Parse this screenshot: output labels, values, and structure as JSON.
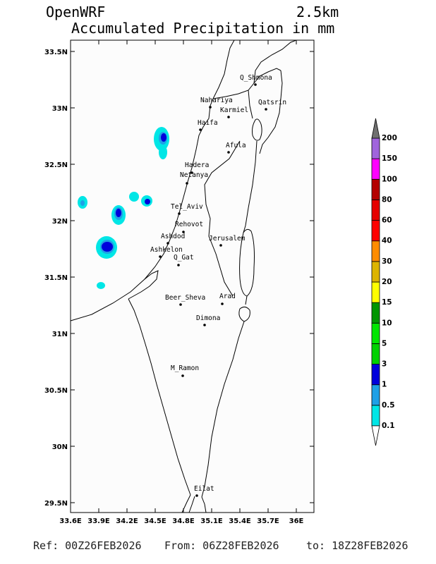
{
  "header": {
    "product": "OpenWRF",
    "resolution": "2.5km",
    "title": "Accumulated Precipitation in mm"
  },
  "map": {
    "lon_ticks": [
      {
        "value": 33.6,
        "label": "33.6E"
      },
      {
        "value": 33.9,
        "label": "33.9E"
      },
      {
        "value": 34.2,
        "label": "34.2E"
      },
      {
        "value": 34.5,
        "label": "34.5E"
      },
      {
        "value": 34.8,
        "label": "34.8E"
      },
      {
        "value": 35.1,
        "label": "35.1E"
      },
      {
        "value": 35.4,
        "label": "35.4E"
      },
      {
        "value": 35.7,
        "label": "35.7E"
      },
      {
        "value": 36,
        "label": "36E"
      }
    ],
    "lat_ticks": [
      {
        "value": 33.5,
        "label": "33.5N"
      },
      {
        "value": 33,
        "label": "33N"
      },
      {
        "value": 32.5,
        "label": "32.5N"
      },
      {
        "value": 32,
        "label": "32N"
      },
      {
        "value": 31.5,
        "label": "31.5N"
      },
      {
        "value": 31,
        "label": "31N"
      },
      {
        "value": 30.5,
        "label": "30.5N"
      },
      {
        "value": 30,
        "label": "30N"
      },
      {
        "value": 29.5,
        "label": "29.5N"
      }
    ],
    "cities": [
      "Q_Shmona",
      "Nahariya",
      "Qatsrin",
      "Karmiel",
      "Haifa",
      "Afula",
      "Hadera",
      "Netanya",
      "Tel_Aviv",
      "Rehovot",
      "Ashdod",
      "Jerusalem",
      "Ashkelon",
      "Q_Gat",
      "Beer_Sheva",
      "Arad",
      "Dimona",
      "M_Ramon",
      "Eilat"
    ]
  },
  "colorbar": {
    "labels": [
      "0.1",
      "0.5",
      "1",
      "3",
      "5",
      "10",
      "15",
      "20",
      "30",
      "40",
      "60",
      "80",
      "100",
      "150",
      "200"
    ],
    "colors": [
      "#00e6e6",
      "#1ea0e6",
      "#0000dc",
      "#00d200",
      "#00e600",
      "#009600",
      "#ffff00",
      "#dcb400",
      "#ff8c00",
      "#ff0000",
      "#e60000",
      "#b40000",
      "#ff00ff",
      "#a064dc"
    ],
    "over_color": "#707070",
    "under_color": "#ffffff"
  },
  "footer": {
    "ref": "Ref: 00Z26FEB2026",
    "from": "From: 06Z28FEB2026",
    "to": "to: 18Z28FEB2026"
  }
}
